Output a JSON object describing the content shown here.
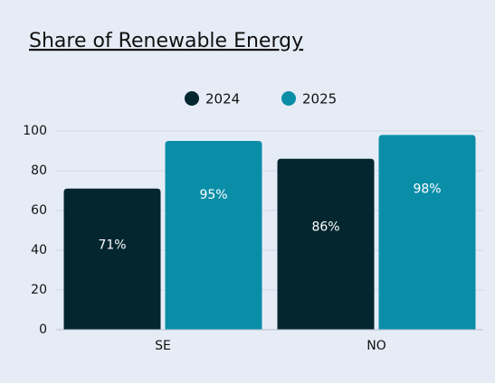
{
  "chart_data": {
    "type": "bar",
    "title": "Share of Renewable Energy",
    "categories": [
      "SE",
      "NO"
    ],
    "series": [
      {
        "name": "2024",
        "color": "#03262f",
        "values": [
          71,
          86
        ],
        "value_labels": [
          "71%",
          "86%"
        ]
      },
      {
        "name": "2025",
        "color": "#0a8ea8",
        "values": [
          95,
          98
        ],
        "value_labels": [
          "95%",
          "98%"
        ]
      }
    ],
    "ylim": [
      0,
      100
    ],
    "yticks": [
      0,
      20,
      40,
      60,
      80,
      100
    ],
    "grid": true,
    "legend": "top"
  }
}
